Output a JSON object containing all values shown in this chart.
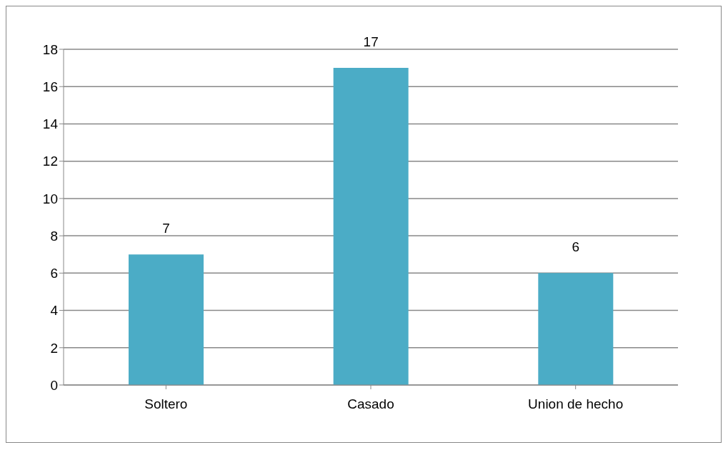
{
  "chart_data": {
    "type": "bar",
    "categories": [
      "Soltero",
      "Casado",
      "Union de hecho"
    ],
    "values": [
      7,
      17,
      6
    ],
    "color": "#4bacc6",
    "ylim": [
      0,
      18
    ],
    "yticks": [
      0,
      2,
      4,
      6,
      8,
      10,
      12,
      14,
      16,
      18
    ],
    "grid": "y",
    "data_labels": true
  }
}
